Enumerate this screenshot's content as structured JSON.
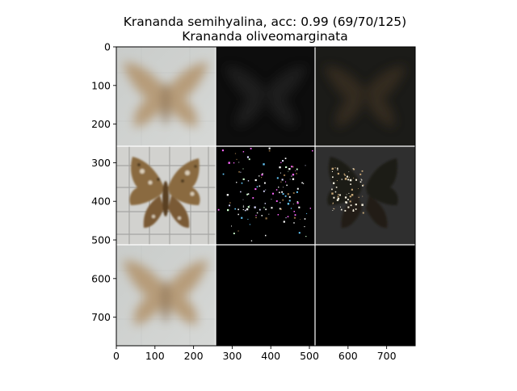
{
  "figure": {
    "title_line1": "Krananda semihyalina, acc: 0.99 (69/70/125)",
    "title_line2": "Krananda oliveomarginata"
  },
  "axes": {
    "x_ticks": [
      "0",
      "100",
      "200",
      "300",
      "400",
      "500",
      "600",
      "700"
    ],
    "x_tick_values": [
      0,
      100,
      200,
      300,
      400,
      500,
      600,
      700
    ],
    "y_ticks": [
      "0",
      "100",
      "200",
      "300",
      "400",
      "500",
      "600",
      "700"
    ],
    "y_tick_values": [
      0,
      100,
      200,
      300,
      400,
      500,
      600,
      700
    ],
    "xlim": [
      0,
      774
    ],
    "ylim": [
      774,
      0
    ]
  },
  "grid": {
    "rows": 3,
    "cols": 3,
    "cell_size_data_units": 256,
    "tiles": [
      {
        "row": 0,
        "col": 0,
        "kind": "blurred-moth"
      },
      {
        "row": 0,
        "col": 1,
        "kind": "dark-faint-moth"
      },
      {
        "row": 0,
        "col": 2,
        "kind": "dark-brown-moth"
      },
      {
        "row": 1,
        "col": 0,
        "kind": "photo-moth"
      },
      {
        "row": 1,
        "col": 1,
        "kind": "sparse-noise"
      },
      {
        "row": 1,
        "col": 2,
        "kind": "dark-moth-with-highlights"
      },
      {
        "row": 2,
        "col": 0,
        "kind": "blurred-moth"
      },
      {
        "row": 2,
        "col": 1,
        "kind": "black"
      },
      {
        "row": 2,
        "col": 2,
        "kind": "black"
      }
    ]
  },
  "colors": {
    "separator": "#ffffff",
    "black": "#000000",
    "moth_light_bg": "#cfd2d0",
    "moth_brown": "#b89a72",
    "moth_dark_brown": "#5a3f22"
  }
}
